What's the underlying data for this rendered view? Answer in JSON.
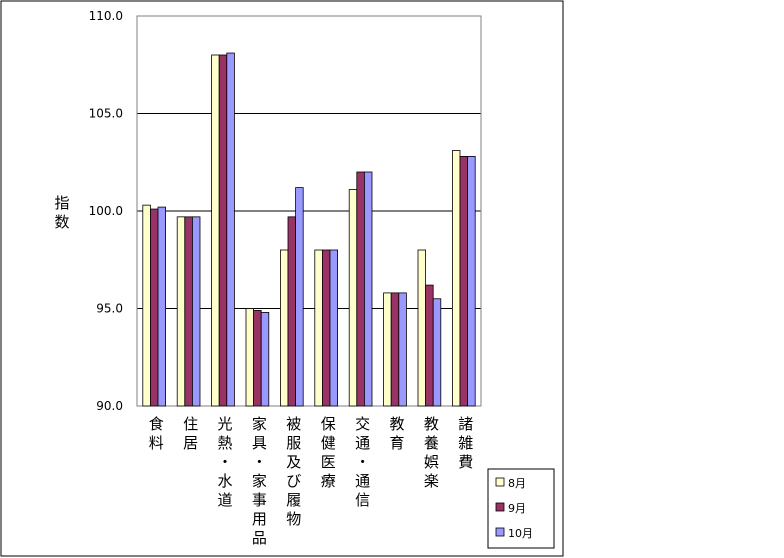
{
  "chart_data": {
    "type": "bar",
    "ylabel": "指数",
    "ylim": [
      90,
      110
    ],
    "yticks": [
      "90.0",
      "95.0",
      "100.0",
      "105.0",
      "110.0"
    ],
    "ytick_values": [
      90,
      95,
      100,
      105,
      110
    ],
    "grid": true,
    "legend_position": "bottom-right",
    "categories": [
      "食料",
      "住居",
      "光熱・水道",
      "家具・家事用品",
      "被服及び履物",
      "保健医療",
      "交通・通信",
      "教育",
      "教養娯楽",
      "諸雑費"
    ],
    "series": [
      {
        "name": "8月",
        "color": "#ffffcc",
        "values": [
          100.3,
          99.7,
          108.0,
          95.0,
          98.0,
          98.0,
          101.1,
          95.8,
          98.0,
          103.1
        ]
      },
      {
        "name": "9月",
        "color": "#993366",
        "values": [
          100.1,
          99.7,
          108.0,
          94.9,
          99.7,
          98.0,
          102.0,
          95.8,
          96.2,
          102.8
        ]
      },
      {
        "name": "10月",
        "color": "#9999ff",
        "values": [
          100.2,
          99.7,
          108.1,
          94.8,
          101.2,
          98.0,
          102.0,
          95.8,
          95.5,
          102.8
        ]
      }
    ]
  }
}
